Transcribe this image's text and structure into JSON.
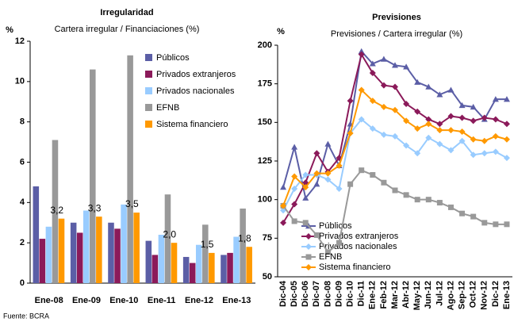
{
  "chart_data": [
    {
      "type": "bar",
      "title": "Irregularidad",
      "subtitle": "Cartera irregular / Financiaciones (%)",
      "y_label": "%",
      "categories": [
        "Ene-08",
        "Ene-09",
        "Ene-10",
        "Ene-11",
        "Ene-12",
        "Ene-13"
      ],
      "series": [
        {
          "name": "Públicos",
          "color": "#5b5ea6",
          "values": [
            4.8,
            3.0,
            3.0,
            2.1,
            1.3,
            1.4
          ]
        },
        {
          "name": "Privados extranjeros",
          "color": "#8b1a5a",
          "values": [
            2.2,
            2.5,
            2.7,
            1.4,
            1.0,
            1.5
          ]
        },
        {
          "name": "Privados nacionales",
          "color": "#99ccff",
          "values": [
            2.8,
            3.6,
            3.9,
            2.4,
            1.9,
            2.3
          ]
        },
        {
          "name": "EFNB",
          "color": "#999999",
          "values": [
            7.1,
            10.6,
            11.3,
            4.4,
            2.9,
            3.7
          ]
        },
        {
          "name": "Sistema financiero",
          "color": "#ff9900",
          "values": [
            3.2,
            3.3,
            3.5,
            2.0,
            1.5,
            1.8
          ],
          "value_labels": [
            "3,2",
            "3,3",
            "3,5",
            "2,0",
            "1,5",
            "1,8"
          ]
        }
      ],
      "ylim": [
        0,
        12
      ],
      "yticks": [
        0,
        2,
        4,
        6,
        8,
        10,
        12
      ],
      "legend": "upper right"
    },
    {
      "type": "line",
      "title": "Previsiones",
      "subtitle": "Previsiones / Cartera irregular (%)",
      "y_label": "%",
      "categories": [
        "Dic-04",
        "Dic-05",
        "Dic-06",
        "Dic-07",
        "Dic-08",
        "Dic-09",
        "Dic-10",
        "Dic-11",
        "Ene-12",
        "Feb-12",
        "Mar-12",
        "Abr-12",
        "May-12",
        "Jun-12",
        "Jul-12",
        "Ago-12",
        "Sep-12",
        "Oct-12",
        "Nov-12",
        "Dic-12",
        "Ene-13"
      ],
      "series": [
        {
          "name": "Públicos",
          "color": "#5b5ea6",
          "marker": "triangle",
          "values": [
            108,
            134,
            101,
            110,
            136,
            122,
            149,
            196,
            188,
            191,
            187,
            186,
            176,
            173,
            168,
            171,
            161,
            160,
            152,
            165,
            165
          ]
        },
        {
          "name": "Privados extranjeros",
          "color": "#8b1a5a",
          "marker": "diamond",
          "values": [
            85,
            97,
            111,
            130,
            118,
            127,
            164,
            194,
            182,
            174,
            173,
            162,
            157,
            152,
            149,
            154,
            153,
            151,
            153,
            152,
            149
          ]
        },
        {
          "name": "Privados nacionales",
          "color": "#99ccff",
          "marker": "diamond",
          "values": [
            93,
            107,
            116,
            116,
            113,
            107,
            143,
            152,
            146,
            142,
            141,
            135,
            130,
            140,
            136,
            132,
            138,
            129,
            130,
            131,
            127
          ]
        },
        {
          "name": "EFNB",
          "color": "#999999",
          "marker": "square",
          "values": [
            96,
            86,
            85,
            77,
            66,
            72,
            110,
            119,
            116,
            111,
            106,
            103,
            100,
            100,
            98,
            95,
            91,
            89,
            85,
            84,
            84
          ]
        },
        {
          "name": "Sistema financiero",
          "color": "#ff9900",
          "marker": "diamond",
          "values": [
            96,
            115,
            108,
            117,
            117,
            122,
            143,
            171,
            164,
            160,
            158,
            151,
            146,
            149,
            145,
            145,
            144,
            139,
            138,
            141,
            139
          ]
        }
      ],
      "ylim": [
        50,
        200
      ],
      "yticks": [
        50,
        75,
        100,
        125,
        150,
        175,
        200
      ],
      "legend": "lower left"
    }
  ],
  "source": "Fuente: BCRA"
}
